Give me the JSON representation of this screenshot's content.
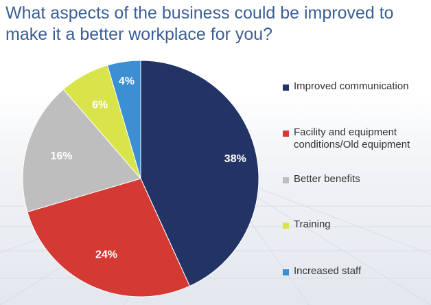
{
  "title": "What aspects of the business could be improved to make it a better workplace for you?",
  "chart_data": {
    "type": "pie",
    "title": "What aspects of the business could be improved to make it a better workplace for you?",
    "legend_position": "right",
    "slices": [
      {
        "label": "Improved communication",
        "value": 38,
        "display": "38%",
        "color": "#223466"
      },
      {
        "label": "Facility and equipment conditions/Old equipment",
        "value": 24,
        "display": "24%",
        "color": "#d33a34"
      },
      {
        "label": "Better benefits",
        "value": 16,
        "display": "16%",
        "color": "#bebebe"
      },
      {
        "label": "Training",
        "value": 6,
        "display": "6%",
        "color": "#d8e44a"
      },
      {
        "label": "Increased staff",
        "value": 4,
        "display": "4%",
        "color": "#3c8fd2"
      }
    ]
  }
}
